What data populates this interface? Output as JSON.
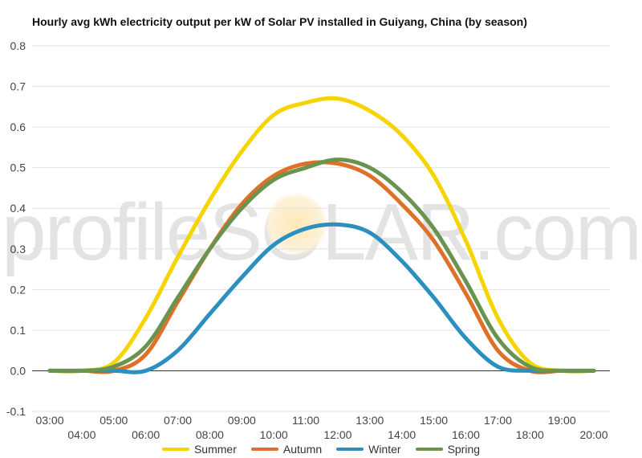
{
  "chart_data": {
    "type": "line",
    "title": "Hourly avg kWh electricity output per kW of Solar PV installed in Guiyang, China (by season)",
    "xlabel": "",
    "ylabel": "",
    "ylim": [
      -0.1,
      0.8
    ],
    "yticks": [
      "0.8",
      "0.7",
      "0.6",
      "0.5",
      "0.4",
      "0.3",
      "0.2",
      "0.1",
      "0.0",
      "-0.1"
    ],
    "x": [
      "03:00",
      "04:00",
      "05:00",
      "06:00",
      "07:00",
      "08:00",
      "09:00",
      "10:00",
      "11:00",
      "12:00",
      "13:00",
      "14:00",
      "15:00",
      "16:00",
      "17:00",
      "18:00",
      "19:00",
      "20:00"
    ],
    "grid": true,
    "legend_position": "bottom",
    "series": [
      {
        "name": "Summer",
        "color": "#f5d400",
        "values": [
          0,
          0,
          0.02,
          0.13,
          0.28,
          0.42,
          0.54,
          0.63,
          0.66,
          0.67,
          0.64,
          0.58,
          0.48,
          0.32,
          0.13,
          0.02,
          0,
          0
        ]
      },
      {
        "name": "Autumn",
        "color": "#e07027",
        "values": [
          0,
          0,
          0,
          0.04,
          0.17,
          0.3,
          0.41,
          0.48,
          0.51,
          0.51,
          0.48,
          0.41,
          0.32,
          0.19,
          0.05,
          0,
          0,
          0
        ]
      },
      {
        "name": "Winter",
        "color": "#2b8fbf",
        "values": [
          0,
          0,
          0,
          0,
          0.05,
          0.14,
          0.23,
          0.31,
          0.35,
          0.36,
          0.34,
          0.27,
          0.18,
          0.08,
          0.01,
          0,
          0,
          0
        ]
      },
      {
        "name": "Spring",
        "color": "#6a9350",
        "values": [
          0,
          0,
          0.01,
          0.06,
          0.18,
          0.3,
          0.4,
          0.47,
          0.5,
          0.52,
          0.5,
          0.44,
          0.35,
          0.22,
          0.08,
          0.01,
          0,
          0
        ]
      }
    ],
    "watermark": "profileSOLAR.com"
  }
}
